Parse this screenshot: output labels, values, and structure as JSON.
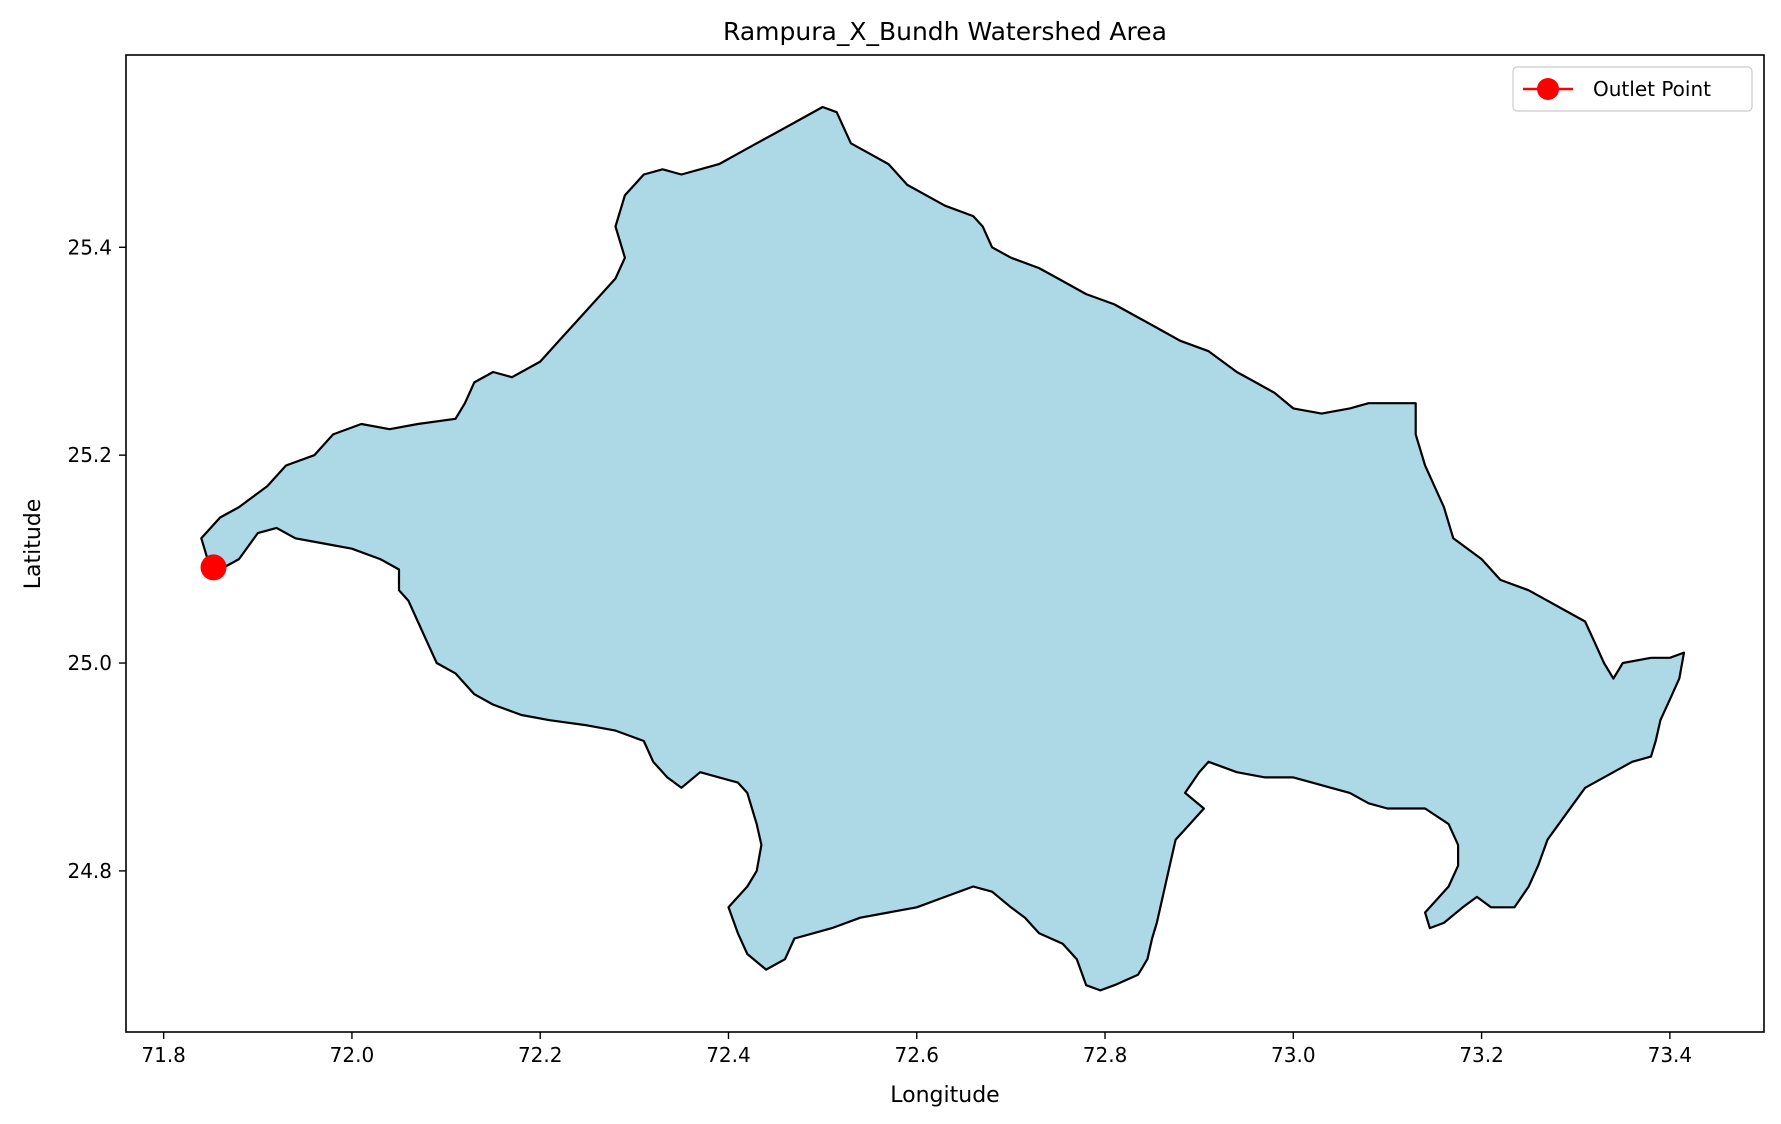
{
  "chart_data": {
    "type": "map",
    "title": "Rampura_X_Bundh Watershed Area",
    "xlabel": "Longitude",
    "ylabel": "Latitude",
    "xlim": [
      71.76,
      73.5
    ],
    "ylim": [
      24.645,
      25.585
    ],
    "xticks": [
      71.8,
      72.0,
      72.2,
      72.4,
      72.6,
      72.8,
      73.0,
      73.2,
      73.4
    ],
    "xtick_labels": [
      "71.8",
      "72.0",
      "72.2",
      "72.4",
      "72.6",
      "72.8",
      "73.0",
      "73.2",
      "73.4"
    ],
    "yticks": [
      24.8,
      25.0,
      25.2,
      25.4
    ],
    "ytick_labels": [
      "24.8",
      "25.0",
      "25.2",
      "25.4"
    ],
    "grid": false,
    "watershed": {
      "fill_color": "#add8e6",
      "edge_color": "#000000",
      "boundary": [
        [
          71.85,
          25.09
        ],
        [
          71.84,
          25.12
        ],
        [
          71.86,
          25.14
        ],
        [
          71.88,
          25.15
        ],
        [
          71.91,
          25.17
        ],
        [
          71.93,
          25.19
        ],
        [
          71.96,
          25.2
        ],
        [
          71.98,
          25.22
        ],
        [
          72.01,
          25.23
        ],
        [
          72.04,
          25.225
        ],
        [
          72.07,
          25.23
        ],
        [
          72.11,
          25.235
        ],
        [
          72.12,
          25.25
        ],
        [
          72.13,
          25.27
        ],
        [
          72.15,
          25.28
        ],
        [
          72.17,
          25.275
        ],
        [
          72.2,
          25.29
        ],
        [
          72.22,
          25.31
        ],
        [
          72.24,
          25.33
        ],
        [
          72.26,
          25.35
        ],
        [
          72.28,
          25.37
        ],
        [
          72.29,
          25.39
        ],
        [
          72.28,
          25.42
        ],
        [
          72.29,
          25.45
        ],
        [
          72.31,
          25.47
        ],
        [
          72.33,
          25.475
        ],
        [
          72.35,
          25.47
        ],
        [
          72.37,
          25.475
        ],
        [
          72.39,
          25.48
        ],
        [
          72.41,
          25.49
        ],
        [
          72.43,
          25.5
        ],
        [
          72.45,
          25.51
        ],
        [
          72.47,
          25.52
        ],
        [
          72.5,
          25.535
        ],
        [
          72.515,
          25.53
        ],
        [
          72.53,
          25.5
        ],
        [
          72.55,
          25.49
        ],
        [
          72.57,
          25.48
        ],
        [
          72.59,
          25.46
        ],
        [
          72.61,
          25.45
        ],
        [
          72.63,
          25.44
        ],
        [
          72.66,
          25.43
        ],
        [
          72.67,
          25.42
        ],
        [
          72.68,
          25.4
        ],
        [
          72.7,
          25.39
        ],
        [
          72.73,
          25.38
        ],
        [
          72.75,
          25.37
        ],
        [
          72.78,
          25.355
        ],
        [
          72.81,
          25.345
        ],
        [
          72.84,
          25.33
        ],
        [
          72.86,
          25.32
        ],
        [
          72.88,
          25.31
        ],
        [
          72.91,
          25.3
        ],
        [
          72.94,
          25.28
        ],
        [
          72.96,
          25.27
        ],
        [
          72.98,
          25.26
        ],
        [
          73.0,
          25.245
        ],
        [
          73.03,
          25.24
        ],
        [
          73.06,
          25.245
        ],
        [
          73.08,
          25.25
        ],
        [
          73.11,
          25.25
        ],
        [
          73.13,
          25.25
        ],
        [
          73.13,
          25.22
        ],
        [
          73.14,
          25.19
        ],
        [
          73.15,
          25.17
        ],
        [
          73.16,
          25.15
        ],
        [
          73.17,
          25.12
        ],
        [
          73.2,
          25.1
        ],
        [
          73.22,
          25.08
        ],
        [
          73.25,
          25.07
        ],
        [
          73.27,
          25.06
        ],
        [
          73.29,
          25.05
        ],
        [
          73.31,
          25.04
        ],
        [
          73.32,
          25.02
        ],
        [
          73.33,
          25.0
        ],
        [
          73.34,
          24.985
        ],
        [
          73.35,
          25.0
        ],
        [
          73.38,
          25.005
        ],
        [
          73.4,
          25.005
        ],
        [
          73.415,
          25.01
        ],
        [
          73.41,
          24.985
        ],
        [
          73.4,
          24.965
        ],
        [
          73.39,
          24.945
        ],
        [
          73.385,
          24.925
        ],
        [
          73.38,
          24.91
        ],
        [
          73.36,
          24.905
        ],
        [
          73.34,
          24.895
        ],
        [
          73.31,
          24.88
        ],
        [
          73.29,
          24.855
        ],
        [
          73.27,
          24.83
        ],
        [
          73.26,
          24.805
        ],
        [
          73.25,
          24.785
        ],
        [
          73.235,
          24.765
        ],
        [
          73.21,
          24.765
        ],
        [
          73.195,
          24.775
        ],
        [
          73.18,
          24.765
        ],
        [
          73.16,
          24.75
        ],
        [
          73.145,
          24.745
        ],
        [
          73.14,
          24.76
        ],
        [
          73.15,
          24.77
        ],
        [
          73.165,
          24.785
        ],
        [
          73.175,
          24.805
        ],
        [
          73.175,
          24.825
        ],
        [
          73.165,
          24.845
        ],
        [
          73.14,
          24.86
        ],
        [
          73.12,
          24.86
        ],
        [
          73.1,
          24.86
        ],
        [
          73.08,
          24.865
        ],
        [
          73.06,
          24.875
        ],
        [
          73.04,
          24.88
        ],
        [
          73.02,
          24.885
        ],
        [
          73.0,
          24.89
        ],
        [
          72.97,
          24.89
        ],
        [
          72.94,
          24.895
        ],
        [
          72.91,
          24.905
        ],
        [
          72.9,
          24.895
        ],
        [
          72.885,
          24.875
        ],
        [
          72.905,
          24.86
        ],
        [
          72.89,
          24.845
        ],
        [
          72.875,
          24.83
        ],
        [
          72.87,
          24.81
        ],
        [
          72.865,
          24.79
        ],
        [
          72.86,
          24.77
        ],
        [
          72.855,
          24.75
        ],
        [
          72.85,
          24.735
        ],
        [
          72.845,
          24.715
        ],
        [
          72.835,
          24.7
        ],
        [
          72.81,
          24.69
        ],
        [
          72.795,
          24.685
        ],
        [
          72.78,
          24.69
        ],
        [
          72.77,
          24.715
        ],
        [
          72.755,
          24.73
        ],
        [
          72.73,
          24.74
        ],
        [
          72.715,
          24.755
        ],
        [
          72.7,
          24.765
        ],
        [
          72.68,
          24.78
        ],
        [
          72.66,
          24.785
        ],
        [
          72.63,
          24.775
        ],
        [
          72.6,
          24.765
        ],
        [
          72.57,
          24.76
        ],
        [
          72.54,
          24.755
        ],
        [
          72.51,
          24.745
        ],
        [
          72.49,
          24.74
        ],
        [
          72.47,
          24.735
        ],
        [
          72.46,
          24.715
        ],
        [
          72.44,
          24.705
        ],
        [
          72.42,
          24.72
        ],
        [
          72.41,
          24.74
        ],
        [
          72.4,
          24.765
        ],
        [
          72.41,
          24.775
        ],
        [
          72.42,
          24.785
        ],
        [
          72.43,
          24.8
        ],
        [
          72.435,
          24.825
        ],
        [
          72.43,
          24.845
        ],
        [
          72.425,
          24.86
        ],
        [
          72.42,
          24.875
        ],
        [
          72.41,
          24.885
        ],
        [
          72.39,
          24.89
        ],
        [
          72.37,
          24.895
        ],
        [
          72.35,
          24.88
        ],
        [
          72.335,
          24.89
        ],
        [
          72.32,
          24.905
        ],
        [
          72.31,
          24.925
        ],
        [
          72.28,
          24.935
        ],
        [
          72.25,
          24.94
        ],
        [
          72.21,
          24.945
        ],
        [
          72.18,
          24.95
        ],
        [
          72.15,
          24.96
        ],
        [
          72.13,
          24.97
        ],
        [
          72.11,
          24.99
        ],
        [
          72.09,
          25.0
        ],
        [
          72.08,
          25.02
        ],
        [
          72.07,
          25.04
        ],
        [
          72.06,
          25.06
        ],
        [
          72.05,
          25.07
        ],
        [
          72.05,
          25.09
        ],
        [
          72.03,
          25.1
        ],
        [
          72.0,
          25.11
        ],
        [
          71.97,
          25.115
        ],
        [
          71.94,
          25.12
        ],
        [
          71.92,
          25.13
        ],
        [
          71.9,
          25.125
        ],
        [
          71.88,
          25.1
        ],
        [
          71.86,
          25.09
        ]
      ]
    },
    "outlet_point": {
      "name": "Outlet Point",
      "x": 71.853,
      "y": 25.092,
      "color": "#ff0000"
    },
    "legend": {
      "placement": "top-right",
      "entries": [
        "Outlet Point"
      ]
    }
  }
}
